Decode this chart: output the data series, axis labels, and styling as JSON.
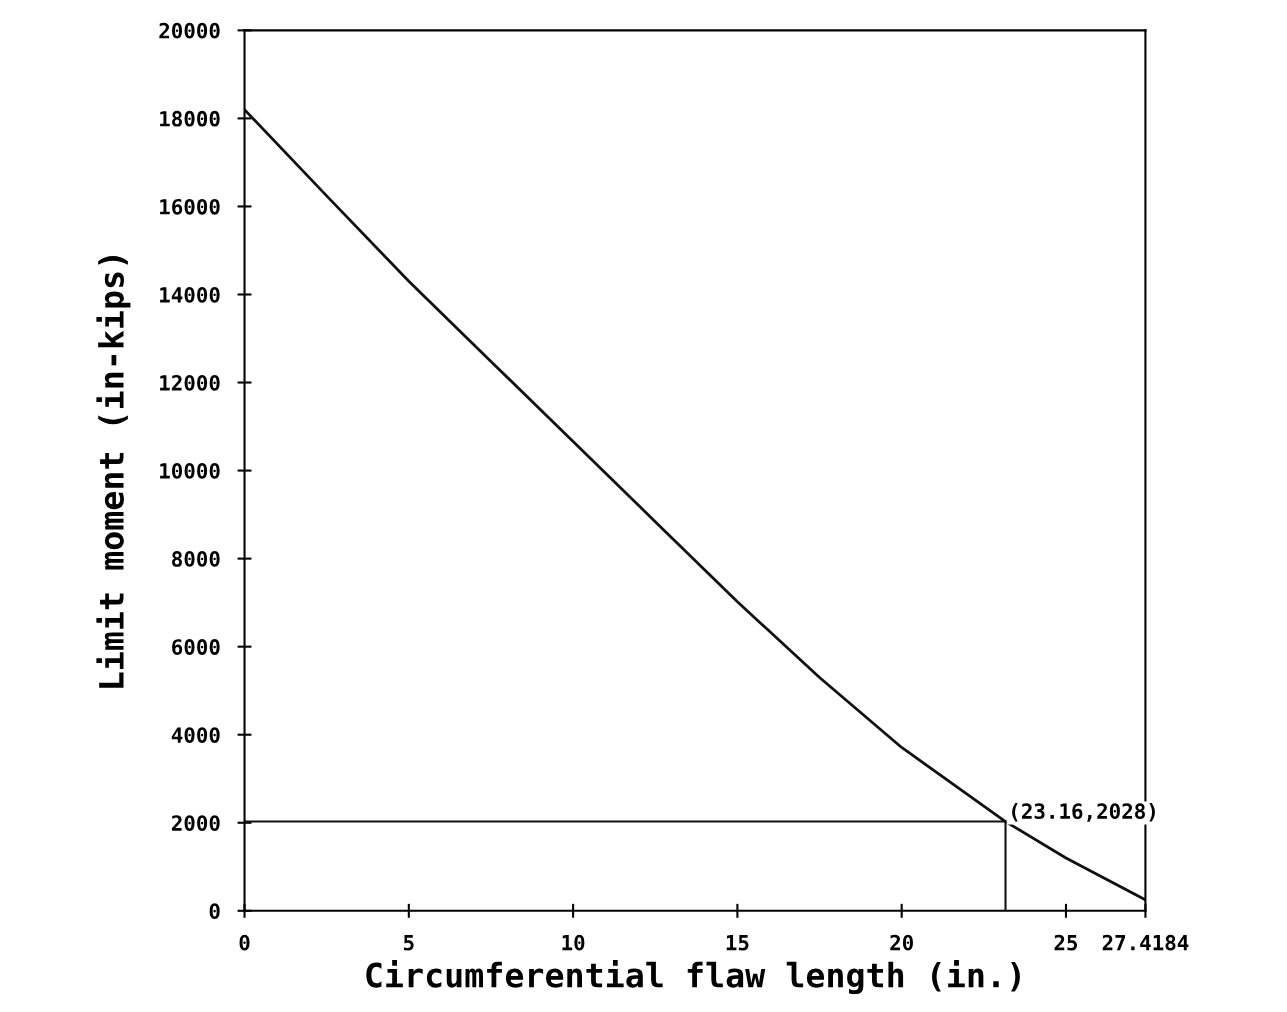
{
  "chart_data": {
    "type": "line",
    "xlabel": "Circumferential flaw length (in.)",
    "ylabel": "Limit moment (in-kips)",
    "series": [
      {
        "color": "#111111",
        "x": [
          0,
          2.5,
          5,
          7.5,
          10,
          12.5,
          15,
          17.5,
          20,
          23.16,
          25,
          27.4184
        ],
        "values": [
          18200,
          16240,
          14300,
          12480,
          10660,
          8840,
          7020,
          5300,
          3710,
          2028,
          1200,
          250
        ]
      },
      {
        "color": "#111111",
        "x": [
          0,
          23.16,
          23.16
        ],
        "values": [
          2028,
          2028,
          0
        ]
      }
    ],
    "annotations": [
      {
        "text": "(23.16,2028)",
        "x": 23.16,
        "y": 2028
      }
    ],
    "xlim": [
      0,
      27.4184
    ],
    "xticks": [
      0,
      5,
      10,
      15,
      20,
      25,
      27.4184
    ],
    "ylim": [
      0,
      20000
    ],
    "yticks": [
      0,
      2000,
      4000,
      6000,
      8000,
      10000,
      12000,
      14000,
      16000,
      18000,
      20000
    ],
    "grid": false,
    "legend": false,
    "marker": "none",
    "line_style": "solid"
  }
}
